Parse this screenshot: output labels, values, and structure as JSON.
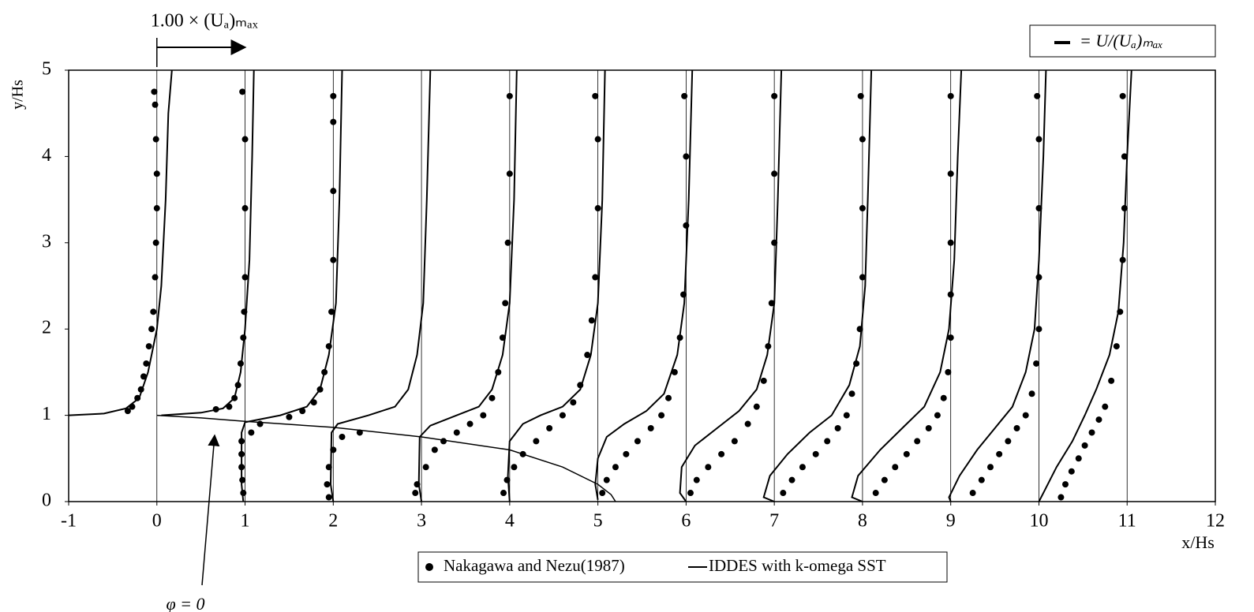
{
  "chart_data": {
    "type": "profiles",
    "xlabel": "x/Hs",
    "ylabel": "y/Hs",
    "xlim": [
      -1,
      12
    ],
    "ylim": [
      0,
      5
    ],
    "xticks": [
      -1,
      0,
      1,
      2,
      3,
      4,
      5,
      6,
      7,
      8,
      9,
      10,
      11,
      12
    ],
    "yticks": [
      0,
      1,
      2,
      3,
      4,
      5
    ],
    "reference_x": [
      0,
      1,
      2,
      3,
      4,
      5,
      6,
      7,
      8,
      9,
      10,
      11
    ],
    "scale_arrow": {
      "label": "1.00 × (Uₐ)ₘₐₓ",
      "from": 0,
      "to": 1
    },
    "profile_legend": "= U/(Uₐ)ₘₐₓ",
    "streamline": {
      "label": "φ = 0",
      "x": [
        0,
        0.5,
        1,
        2,
        3,
        4,
        4.6,
        5.0,
        5.15,
        5.2
      ],
      "y": [
        1,
        0.97,
        0.93,
        0.86,
        0.75,
        0.6,
        0.4,
        0.2,
        0.08,
        0
      ]
    },
    "series": [
      {
        "name": "Nakagawa and Nezu(1987)",
        "kind": "scatter",
        "color": "#000000",
        "x": [
          -0.33,
          -0.28,
          -0.22,
          -0.18,
          -0.15,
          -0.12,
          -0.09,
          -0.06,
          -0.04,
          -0.02,
          -0.01,
          0,
          0,
          -0.01,
          -0.02,
          -0.03,
          0.98,
          0.97,
          0.96,
          0.96,
          0.96,
          1.07,
          1.17,
          0.67,
          0.82,
          0.88,
          0.92,
          0.95,
          0.98,
          0.99,
          1.0,
          1.0,
          1.0,
          0.97,
          1.95,
          1.93,
          1.95,
          2.0,
          2.1,
          2.3,
          1.5,
          1.65,
          1.78,
          1.85,
          1.9,
          1.95,
          1.98,
          2.0,
          2.0,
          2.0,
          2.0,
          2.93,
          2.95,
          3.05,
          3.15,
          3.25,
          3.4,
          3.55,
          3.7,
          3.8,
          3.87,
          3.92,
          3.95,
          3.98,
          4.0,
          4.0,
          3.93,
          3.97,
          4.05,
          4.15,
          4.3,
          4.45,
          4.6,
          4.72,
          4.8,
          4.88,
          4.93,
          4.97,
          5.0,
          5.0,
          4.97,
          5.05,
          5.1,
          5.2,
          5.32,
          5.45,
          5.6,
          5.72,
          5.8,
          5.87,
          5.93,
          5.97,
          6.0,
          6.0,
          5.98,
          6.05,
          6.12,
          6.25,
          6.4,
          6.55,
          6.7,
          6.8,
          6.88,
          6.93,
          6.97,
          7.0,
          7.0,
          7.0,
          7.1,
          7.2,
          7.32,
          7.47,
          7.6,
          7.72,
          7.82,
          7.88,
          7.93,
          7.97,
          8.0,
          8.0,
          8.0,
          7.98,
          8.15,
          8.25,
          8.37,
          8.5,
          8.62,
          8.75,
          8.85,
          8.92,
          8.97,
          9.0,
          9.0,
          9.0,
          9.0,
          9.0,
          9.25,
          9.35,
          9.45,
          9.55,
          9.65,
          9.75,
          9.85,
          9.92,
          9.97,
          10.0,
          10.0,
          10.0,
          10.0,
          9.98,
          10.25,
          10.3,
          10.37,
          10.45,
          10.52,
          10.6,
          10.68,
          10.75,
          10.82,
          10.88,
          10.92,
          10.95,
          10.97,
          10.97,
          10.95
        ],
        "values": [
          1.05,
          1.1,
          1.2,
          1.3,
          1.45,
          1.6,
          1.8,
          2.0,
          2.2,
          2.6,
          3.0,
          3.4,
          3.8,
          4.2,
          4.6,
          4.75,
          0.1,
          0.25,
          0.4,
          0.55,
          0.7,
          0.8,
          0.9,
          1.07,
          1.1,
          1.2,
          1.35,
          1.6,
          1.9,
          2.2,
          2.6,
          3.4,
          4.2,
          4.75,
          0.05,
          0.2,
          0.4,
          0.6,
          0.75,
          0.8,
          0.98,
          1.05,
          1.15,
          1.3,
          1.5,
          1.8,
          2.2,
          2.8,
          3.6,
          4.4,
          4.7,
          0.1,
          0.2,
          0.4,
          0.6,
          0.7,
          0.8,
          0.9,
          1.0,
          1.2,
          1.5,
          1.9,
          2.3,
          3.0,
          3.8,
          4.7,
          0.1,
          0.25,
          0.4,
          0.55,
          0.7,
          0.85,
          1.0,
          1.15,
          1.35,
          1.7,
          2.1,
          2.6,
          3.4,
          4.2,
          4.7,
          0.1,
          0.25,
          0.4,
          0.55,
          0.7,
          0.85,
          1.0,
          1.2,
          1.5,
          1.9,
          2.4,
          3.2,
          4.0,
          4.7,
          0.1,
          0.25,
          0.4,
          0.55,
          0.7,
          0.9,
          1.1,
          1.4,
          1.8,
          2.3,
          3.0,
          3.8,
          4.7,
          0.1,
          0.25,
          0.4,
          0.55,
          0.7,
          0.85,
          1.0,
          1.25,
          1.6,
          2.0,
          2.6,
          3.4,
          4.2,
          4.7,
          0.1,
          0.25,
          0.4,
          0.55,
          0.7,
          0.85,
          1.0,
          1.2,
          1.5,
          1.9,
          2.4,
          3.0,
          3.8,
          4.7,
          0.1,
          0.25,
          0.4,
          0.55,
          0.7,
          0.85,
          1.0,
          1.25,
          1.6,
          2.0,
          2.6,
          3.4,
          4.2,
          4.7,
          0.05,
          0.2,
          0.35,
          0.5,
          0.65,
          0.8,
          0.95,
          1.1,
          1.4,
          1.8,
          2.2,
          2.8,
          3.4,
          4.0,
          4.7
        ]
      },
      {
        "name": "IDDES with k-omega SST",
        "kind": "line",
        "color": "#000000",
        "x": [
          -1,
          -0.6,
          -0.35,
          -0.2,
          -0.1,
          0,
          0.05,
          0.1,
          0.13,
          0.17,
          null,
          0.05,
          0.5,
          0.75,
          0.88,
          0.95,
          1.0,
          1.05,
          1.08,
          1.1,
          null,
          0.98,
          0.96,
          0.96,
          1.0,
          1.4,
          1.7,
          1.85,
          1.95,
          2.03,
          2.07,
          2.1,
          null,
          2.0,
          1.97,
          1.98,
          2.05,
          2.4,
          2.7,
          2.85,
          2.95,
          3.02,
          3.06,
          3.1,
          null,
          3.0,
          2.97,
          2.98,
          3.1,
          3.4,
          3.65,
          3.8,
          3.92,
          4.0,
          4.05,
          4.08,
          null,
          4.0,
          3.98,
          4.0,
          4.15,
          4.35,
          4.6,
          4.8,
          4.92,
          5.0,
          5.05,
          5.08,
          null,
          5.0,
          4.97,
          5.0,
          5.1,
          5.3,
          5.55,
          5.75,
          5.9,
          5.98,
          6.03,
          6.07,
          null,
          6.0,
          5.93,
          5.95,
          6.1,
          6.35,
          6.6,
          6.8,
          6.92,
          7.0,
          7.04,
          7.08,
          null,
          7.0,
          6.88,
          6.95,
          7.15,
          7.4,
          7.65,
          7.85,
          7.97,
          8.03,
          8.06,
          8.1,
          null,
          8.0,
          7.88,
          7.95,
          8.2,
          8.45,
          8.7,
          8.88,
          8.98,
          9.04,
          9.08,
          9.12,
          null,
          9.0,
          8.98,
          9.1,
          9.3,
          9.5,
          9.7,
          9.85,
          9.95,
          10.0,
          10.05,
          10.08,
          null,
          10.0,
          10.05,
          10.2,
          10.38,
          10.52,
          10.65,
          10.8,
          10.9,
          10.96,
          11.0,
          11.05
        ],
        "values": [
          1,
          1.02,
          1.08,
          1.2,
          1.5,
          2.0,
          2.5,
          3.5,
          4.5,
          5,
          null,
          1.0,
          1.03,
          1.08,
          1.2,
          1.5,
          2.0,
          2.8,
          4,
          5,
          null,
          0,
          0.2,
          0.8,
          0.92,
          1.0,
          1.1,
          1.3,
          1.7,
          2.3,
          3.5,
          5,
          null,
          0,
          0.2,
          0.8,
          0.9,
          1.0,
          1.1,
          1.3,
          1.7,
          2.3,
          3.5,
          5,
          null,
          0,
          0.2,
          0.75,
          0.88,
          1.0,
          1.1,
          1.3,
          1.7,
          2.3,
          3.5,
          5,
          null,
          0,
          0.3,
          0.7,
          0.9,
          1.0,
          1.1,
          1.3,
          1.7,
          2.3,
          3.5,
          5,
          null,
          0.02,
          0.2,
          0.5,
          0.75,
          0.9,
          1.05,
          1.25,
          1.7,
          2.3,
          3.5,
          5,
          null,
          0,
          0.1,
          0.4,
          0.65,
          0.85,
          1.05,
          1.3,
          1.7,
          2.3,
          3.5,
          5,
          null,
          0,
          0.05,
          0.3,
          0.55,
          0.8,
          1.0,
          1.35,
          1.8,
          2.5,
          3.5,
          5,
          null,
          0,
          0.05,
          0.3,
          0.6,
          0.85,
          1.1,
          1.5,
          2.0,
          2.8,
          4,
          5,
          null,
          0,
          0.05,
          0.3,
          0.6,
          0.85,
          1.1,
          1.5,
          2.0,
          2.8,
          4,
          5,
          null,
          0,
          0.1,
          0.4,
          0.7,
          1.0,
          1.3,
          1.7,
          2.2,
          3.0,
          4,
          5
        ]
      }
    ]
  }
}
